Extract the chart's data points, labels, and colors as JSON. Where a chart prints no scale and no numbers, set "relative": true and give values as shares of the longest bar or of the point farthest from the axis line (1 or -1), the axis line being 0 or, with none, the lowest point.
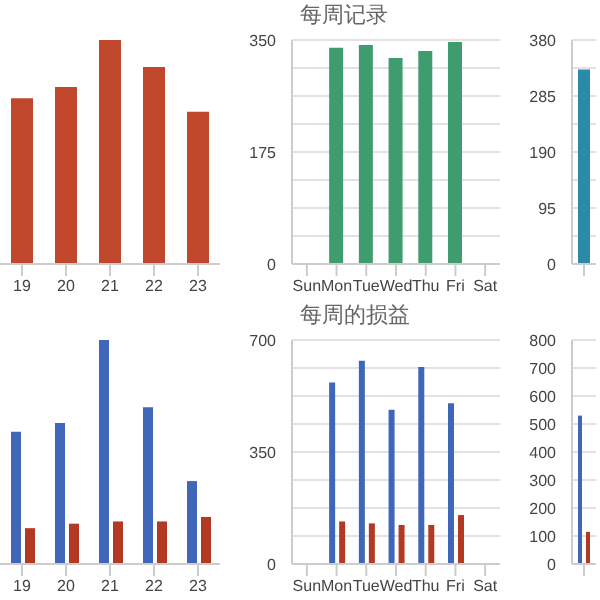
{
  "chart_data": [
    {
      "type": "bar",
      "relative": true,
      "categories": [
        "19",
        "20",
        "21",
        "22",
        "23"
      ],
      "series": [
        {
          "color": "#c0462c",
          "values": [
            0.74,
            0.79,
            1,
            0.88,
            0.68
          ]
        }
      ]
    },
    {
      "type": "bar",
      "title": "每周记录",
      "categories": [
        "Sun",
        "Mon",
        "Tue",
        "Wed",
        "Thu",
        "Fri",
        "Sat"
      ],
      "series": [
        {
          "color": "#3f9c6e",
          "values": [
            null,
            338,
            342,
            322,
            333,
            347,
            null
          ]
        }
      ],
      "ylim": [
        0,
        350
      ],
      "yticks": [
        0,
        {
          "value": 43.75,
          "label": null
        },
        {
          "value": 87.5,
          "label": null
        },
        {
          "value": 131.25,
          "label": null
        },
        175,
        {
          "value": 218.75,
          "label": null
        },
        {
          "value": 262.5,
          "label": null
        },
        {
          "value": 306.25,
          "label": null
        },
        350
      ],
      "grid": "y"
    },
    {
      "type": "bar",
      "categories": [
        null
      ],
      "series": [
        {
          "color": "#2b8aa8",
          "values": [
            330
          ]
        }
      ],
      "ylim": [
        0,
        380
      ],
      "yticks": [
        0,
        {
          "value": 47.5,
          "label": null
        },
        95,
        {
          "value": 142.5,
          "label": null
        },
        190,
        {
          "value": 237.5,
          "label": null
        },
        285,
        {
          "value": 332.5,
          "label": null
        },
        380
      ],
      "grid": "y"
    },
    {
      "type": "bar",
      "relative": true,
      "categories": [
        "19",
        "20",
        "21",
        "22",
        "23"
      ],
      "series": [
        {
          "color": "#3f66b8",
          "values": [
            0.59,
            0.63,
            1,
            0.7,
            0.37
          ]
        },
        {
          "color": "#b33a22",
          "values": [
            0.16,
            0.18,
            0.19,
            0.19,
            0.21
          ]
        }
      ]
    },
    {
      "type": "bar",
      "title": "每周的损益",
      "categories": [
        "Sun",
        "Mon",
        "Tue",
        "Wed",
        "Thu",
        "Fri",
        "Sat"
      ],
      "series": [
        {
          "color": "#3f66b8",
          "values": [
            null,
            567,
            635,
            482,
            616,
            502,
            null
          ]
        },
        {
          "color": "#b33a22",
          "values": [
            null,
            133,
            127,
            122,
            122,
            153,
            null
          ]
        }
      ],
      "ylim": [
        0,
        700
      ],
      "yticks": [
        0,
        {
          "value": 87.5,
          "label": null
        },
        {
          "value": 175,
          "label": null
        },
        {
          "value": 262.5,
          "label": null
        },
        350,
        {
          "value": 437.5,
          "label": null
        },
        {
          "value": 525,
          "label": null
        },
        {
          "value": 612.5,
          "label": null
        },
        700
      ],
      "grid": "y"
    },
    {
      "type": "bar",
      "categories": [
        null
      ],
      "series": [
        {
          "color": "#3f66b8",
          "values": [
            530
          ]
        },
        {
          "color": "#b33a22",
          "values": [
            115
          ]
        }
      ],
      "ylim": [
        0,
        800
      ],
      "yticks": [
        0,
        100,
        200,
        300,
        400,
        500,
        600,
        700,
        800
      ],
      "grid": "y"
    }
  ]
}
